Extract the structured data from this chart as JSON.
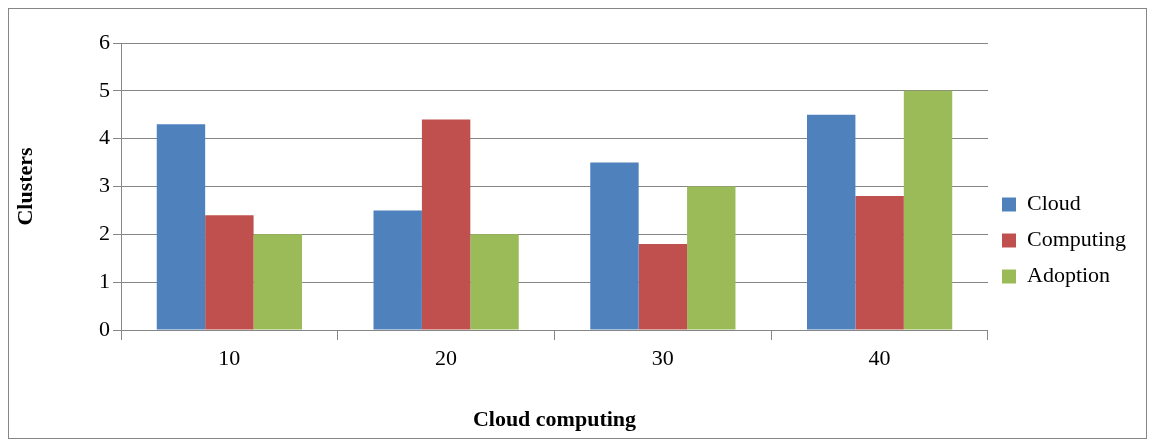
{
  "chart_data": {
    "type": "bar",
    "xlabel": "Cloud computing",
    "ylabel": "Clusters",
    "categories": [
      "10",
      "20",
      "30",
      "40"
    ],
    "series": [
      {
        "name": "Cloud",
        "color": "#4f81bd",
        "values": [
          4.3,
          2.5,
          3.5,
          4.5
        ]
      },
      {
        "name": "Computing",
        "color": "#c0504d",
        "values": [
          2.4,
          4.4,
          1.8,
          2.8
        ]
      },
      {
        "name": "Adoption",
        "color": "#9bbb59",
        "values": [
          2,
          2,
          3,
          5
        ]
      }
    ],
    "ylim": [
      0,
      6
    ],
    "yticks": [
      0,
      1,
      2,
      3,
      4,
      5,
      6
    ],
    "grid": "y",
    "legend": "right"
  }
}
